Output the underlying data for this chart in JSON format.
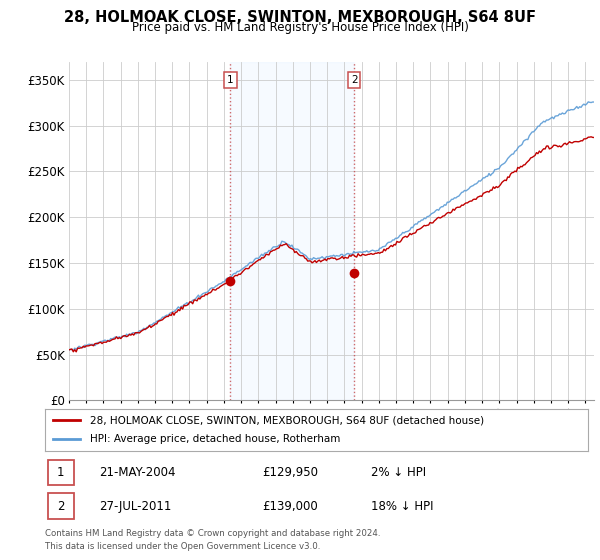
{
  "title": "28, HOLMOAK CLOSE, SWINTON, MEXBOROUGH, S64 8UF",
  "subtitle": "Price paid vs. HM Land Registry's House Price Index (HPI)",
  "ylabel_ticks": [
    "£0",
    "£50K",
    "£100K",
    "£150K",
    "£200K",
    "£250K",
    "£300K",
    "£350K"
  ],
  "ytick_vals": [
    0,
    50000,
    100000,
    150000,
    200000,
    250000,
    300000,
    350000
  ],
  "ylim": [
    0,
    370000
  ],
  "sale1_date": "21-MAY-2004",
  "sale1_price": 129950,
  "sale1_pct": "2% ↓ HPI",
  "sale1_x": 2004.38,
  "sale2_date": "27-JUL-2011",
  "sale2_price": 139000,
  "sale2_pct": "18% ↓ HPI",
  "sale2_x": 2011.57,
  "legend_line1": "28, HOLMOAK CLOSE, SWINTON, MEXBOROUGH, S64 8UF (detached house)",
  "legend_line2": "HPI: Average price, detached house, Rotherham",
  "footnote": "Contains HM Land Registry data © Crown copyright and database right 2024.\nThis data is licensed under the Open Government Licence v3.0.",
  "hpi_color": "#5b9bd5",
  "price_color": "#c00000",
  "shade_color": "#ddeeff",
  "vline_color": "#c85050",
  "xmin": 1995,
  "xmax": 2025.5
}
